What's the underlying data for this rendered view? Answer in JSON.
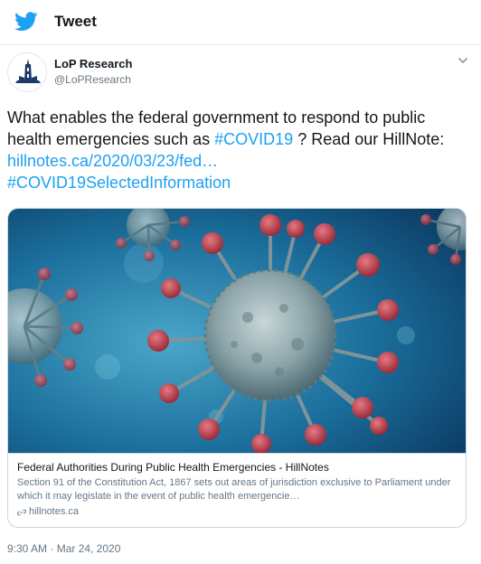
{
  "header": {
    "icon": "twitter-bird-icon",
    "title": "Tweet",
    "brand_color": "#1da1f2"
  },
  "author": {
    "avatar_icon": "parliament-logo-icon",
    "name": "LoP Research",
    "handle": "@LoPResearch",
    "menu_icon": "chevron-down-icon"
  },
  "tweet": {
    "text_1": "What enables the federal government to respond to public health emergencies such as ",
    "hashtag_1": "#COVID19",
    "text_2": " ? Read our HillNote: ",
    "link": "hillnotes.ca/2020/03/23/fed…",
    "hashtag_2": "#COVID19SelectedInformation",
    "link_color": "#1da1f2"
  },
  "card": {
    "image_subject": "coronavirus-illustration",
    "title": "Federal Authorities During Public Health Emergencies - HillNotes",
    "description": "Section 91 of the Constitution Act, 1867 sets out areas of jurisdiction exclusive to Parliament under which it may legislate in the event of public health emergencie…",
    "domain_icon": "link-icon",
    "domain": "hillnotes.ca"
  },
  "timestamp": "9:30 AM · Mar 24, 2020"
}
